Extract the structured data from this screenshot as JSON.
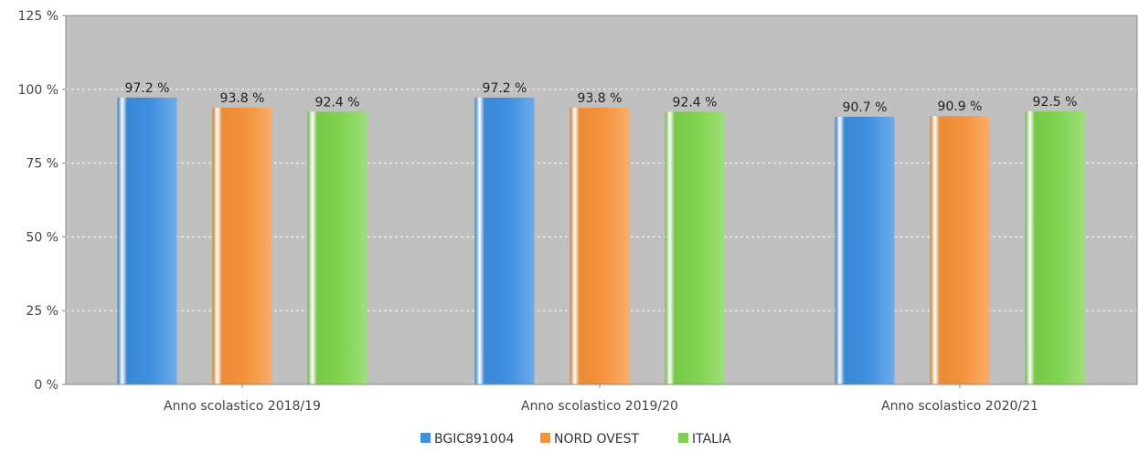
{
  "chart_data": {
    "type": "bar",
    "categories": [
      "Anno scolastico 2018/19",
      "Anno scolastico 2019/20",
      "Anno scolastico 2020/21"
    ],
    "series": [
      {
        "name": "BGIC891004",
        "values": [
          97.2,
          97.2,
          90.7
        ],
        "labels": [
          "97.2 %",
          "97.2 %",
          "90.7 %"
        ],
        "color": "#3d8fe0"
      },
      {
        "name": "NORD OVEST",
        "values": [
          93.8,
          93.8,
          90.9
        ],
        "labels": [
          "93.8 %",
          "93.8 %",
          "90.9 %"
        ],
        "color": "#f5923a"
      },
      {
        "name": "ITALIA",
        "values": [
          92.4,
          92.4,
          92.5
        ],
        "labels": [
          "92.4 %",
          "92.4 %",
          "92.5 %"
        ],
        "color": "#7ed34e"
      }
    ],
    "y_ticks": [
      0,
      25,
      50,
      75,
      100,
      125
    ],
    "y_tick_labels": [
      "0 %",
      "25 %",
      "50 %",
      "75 %",
      "100 %",
      "125 %"
    ],
    "ylim": [
      0,
      125
    ],
    "grid": true,
    "legend_position": "bottom-center",
    "plot_background": "#c0c0c0"
  }
}
